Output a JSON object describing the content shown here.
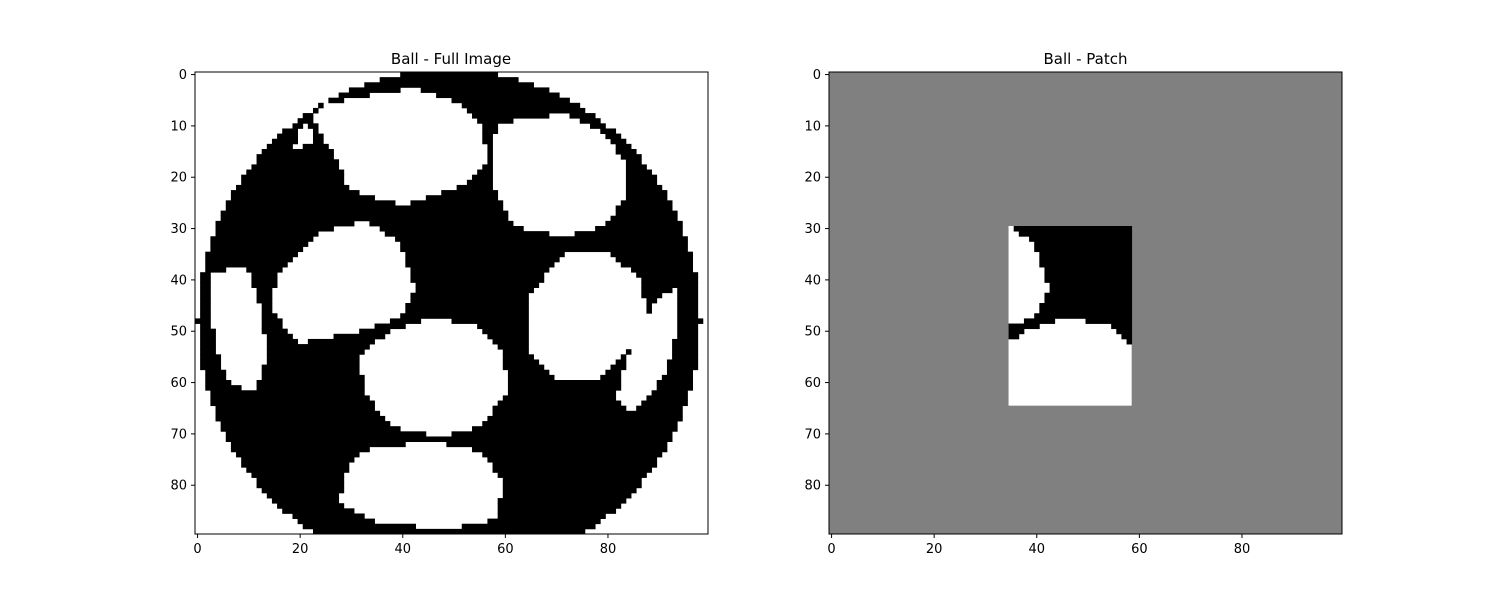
{
  "colors": {
    "ink": "#000000",
    "paper": "#ffffff",
    "masked": "#808080"
  },
  "chart_data": [
    {
      "type": "heatmap",
      "title": "Ball - Full Image",
      "xlim": [
        0,
        100
      ],
      "ylim": [
        90,
        0
      ],
      "x_ticks": [
        0,
        20,
        40,
        60,
        80
      ],
      "y_ticks": [
        0,
        10,
        20,
        30,
        40,
        50,
        60,
        70,
        80
      ],
      "image": {
        "rows": 90,
        "cols": 100,
        "palette": [
          "#ffffff",
          "#000000"
        ],
        "description_values": "binary image: 0 = white panel/background, 1 = black panel/outline",
        "circle": {
          "center_row": 48,
          "center_col": 49,
          "radius": 49
        },
        "white_panels": [
          [
            [
              23,
              9
            ],
            [
              26,
              6
            ],
            [
              43,
              3
            ],
            [
              52,
              6
            ],
            [
              56,
              10
            ],
            [
              57,
              18
            ],
            [
              52,
              22
            ],
            [
              41,
              26
            ],
            [
              30,
              23
            ],
            [
              28,
              18
            ]
          ],
          [
            [
              59,
              10
            ],
            [
              72,
              8
            ],
            [
              80,
              12
            ],
            [
              84,
              18
            ],
            [
              84,
              24
            ],
            [
              80,
              30
            ],
            [
              72,
              32
            ],
            [
              62,
              30
            ],
            [
              58,
              22
            ],
            [
              58,
              14
            ]
          ],
          [
            [
              3,
              39
            ],
            [
              10,
              38
            ],
            [
              13,
              46
            ],
            [
              14,
              55
            ],
            [
              12,
              62
            ],
            [
              7,
              61
            ],
            [
              4,
              54
            ],
            [
              3,
              46
            ]
          ],
          [
            [
              20,
              36
            ],
            [
              25,
              31
            ],
            [
              33,
              29
            ],
            [
              40,
              33
            ],
            [
              43,
              42
            ],
            [
              40,
              48
            ],
            [
              30,
              51
            ],
            [
              20,
              53
            ],
            [
              15,
              46
            ],
            [
              16,
              39
            ]
          ],
          [
            [
              72,
              35
            ],
            [
              80,
              35
            ],
            [
              87,
              40
            ],
            [
              88,
              48
            ],
            [
              85,
              54
            ],
            [
              78,
              60
            ],
            [
              70,
              60
            ],
            [
              65,
              54
            ],
            [
              65,
              44
            ]
          ],
          [
            [
              39,
              50
            ],
            [
              46,
              48
            ],
            [
              55,
              49
            ],
            [
              60,
              54
            ],
            [
              61,
              62
            ],
            [
              56,
              69
            ],
            [
              48,
              71
            ],
            [
              38,
              69
            ],
            [
              33,
              62
            ],
            [
              32,
              55
            ]
          ],
          [
            [
              90,
              44
            ],
            [
              94,
              42
            ],
            [
              94,
              50
            ],
            [
              92,
              58
            ],
            [
              88,
              64
            ],
            [
              85,
              66
            ],
            [
              82,
              64
            ],
            [
              84,
              56
            ]
          ],
          [
            [
              30,
              76
            ],
            [
              35,
              73
            ],
            [
              47,
              72
            ],
            [
              56,
              74
            ],
            [
              60,
              80
            ],
            [
              59,
              87
            ],
            [
              50,
              89
            ],
            [
              36,
              88
            ],
            [
              28,
              84
            ]
          ],
          [
            [
              21,
              10
            ],
            [
              23,
              11
            ],
            [
              23,
              14
            ],
            [
              19,
              15
            ]
          ]
        ]
      }
    },
    {
      "type": "heatmap",
      "title": "Ball - Patch",
      "xlim": [
        0,
        100
      ],
      "ylim": [
        90,
        0
      ],
      "x_ticks": [
        0,
        20,
        40,
        60,
        80
      ],
      "y_ticks": [
        0,
        10,
        20,
        30,
        40,
        50,
        60,
        70,
        80
      ],
      "image": {
        "rows": 90,
        "cols": 100,
        "background": "#808080",
        "patch": {
          "row_start": 30,
          "row_end": 65,
          "col_start": 35,
          "col_end": 59
        },
        "source": "chart_data.0.image"
      }
    }
  ]
}
